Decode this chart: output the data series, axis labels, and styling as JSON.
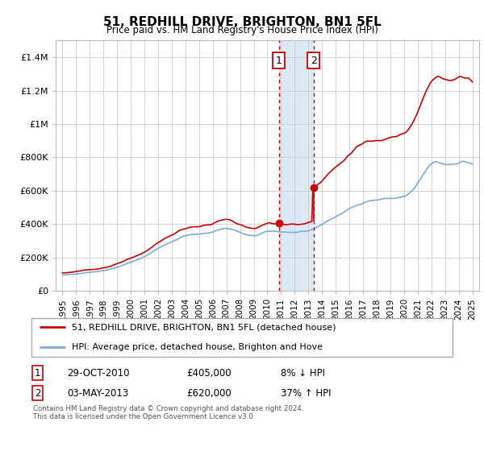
{
  "title": "51, REDHILL DRIVE, BRIGHTON, BN1 5FL",
  "subtitle": "Price paid vs. HM Land Registry's House Price Index (HPI)",
  "legend_line1": "51, REDHILL DRIVE, BRIGHTON, BN1 5FL (detached house)",
  "legend_line2": "HPI: Average price, detached house, Brighton and Hove",
  "transaction1_date": "29-OCT-2010",
  "transaction1_price": "£405,000",
  "transaction1_hpi": "8% ↓ HPI",
  "transaction2_date": "03-MAY-2013",
  "transaction2_price": "£620,000",
  "transaction2_hpi": "37% ↑ HPI",
  "footnote": "Contains HM Land Registry data © Crown copyright and database right 2024.\nThis data is licensed under the Open Government Licence v3.0.",
  "sale1_x": 2010.83,
  "sale1_y": 405000,
  "sale2_x": 2013.37,
  "sale2_y": 620000,
  "shade_x1": 2010.83,
  "shade_x2": 2013.37,
  "red_color": "#cc0000",
  "blue_color": "#7aadda",
  "shade_color": "#dce9f5",
  "grid_color": "#cccccc",
  "ylim": [
    0,
    1500000
  ],
  "xlim": [
    1994.5,
    2025.5
  ],
  "yticks": [
    0,
    200000,
    400000,
    600000,
    800000,
    1000000,
    1200000,
    1400000
  ],
  "ytick_labels": [
    "£0",
    "£200K",
    "£400K",
    "£600K",
    "£800K",
    "£1M",
    "£1.2M",
    "£1.4M"
  ],
  "xticks": [
    1995,
    1996,
    1997,
    1998,
    1999,
    2000,
    2001,
    2002,
    2003,
    2004,
    2005,
    2006,
    2007,
    2008,
    2009,
    2010,
    2011,
    2012,
    2013,
    2014,
    2015,
    2016,
    2017,
    2018,
    2019,
    2020,
    2021,
    2022,
    2023,
    2024,
    2025
  ]
}
